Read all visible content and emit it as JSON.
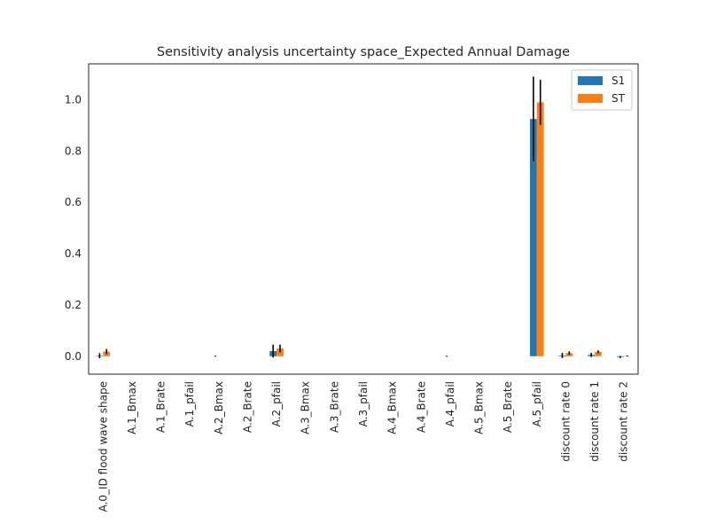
{
  "chart_data": {
    "type": "bar",
    "title": "Sensitivity analysis uncertainty space_Expected Annual Damage",
    "xlabel": "",
    "ylabel": "",
    "ylim": [
      -0.07,
      1.14
    ],
    "yticks": [
      0.0,
      0.2,
      0.4,
      0.6,
      0.8,
      1.0
    ],
    "ytick_labels": [
      "0.0",
      "0.2",
      "0.4",
      "0.6",
      "0.8",
      "1.0"
    ],
    "grid": false,
    "legend_position": "top-right",
    "categories": [
      "A.0_ID flood wave shape",
      "A.1_Bmax",
      "A.1_Brate",
      "A.1_pfail",
      "A.2_Bmax",
      "A.2_Brate",
      "A.2_pfail",
      "A.3_Bmax",
      "A.3_Brate",
      "A.3_pfail",
      "A.4_Bmax",
      "A.4_Brate",
      "A.4_pfail",
      "A.5_Bmax",
      "A.5_Brate",
      "A.5_pfail",
      "discount rate 0",
      "discount rate 1",
      "discount rate 2"
    ],
    "series": [
      {
        "name": "S1",
        "color": "#1f77b4",
        "values": [
          0.002,
          0,
          0,
          0,
          0,
          0,
          0.02,
          0,
          0,
          0,
          0,
          0,
          0,
          0,
          0,
          0.925,
          0.003,
          0.005,
          -0.003
        ],
        "errors": [
          0.01,
          0,
          0,
          0,
          0.002,
          0,
          0.025,
          0,
          0,
          0,
          0,
          0,
          0.002,
          0,
          0,
          0.165,
          0.01,
          0.008,
          0.004
        ]
      },
      {
        "name": "ST",
        "color": "#ff7f0e",
        "values": [
          0.018,
          0,
          0,
          0,
          0,
          0,
          0.03,
          0,
          0,
          0,
          0,
          0,
          0,
          0,
          0,
          0.99,
          0.012,
          0.017,
          0.001
        ],
        "errors": [
          0.01,
          0,
          0,
          0,
          0,
          0,
          0.015,
          0,
          0,
          0,
          0,
          0,
          0,
          0,
          0,
          0.088,
          0.007,
          0.006,
          0.002
        ]
      }
    ]
  }
}
